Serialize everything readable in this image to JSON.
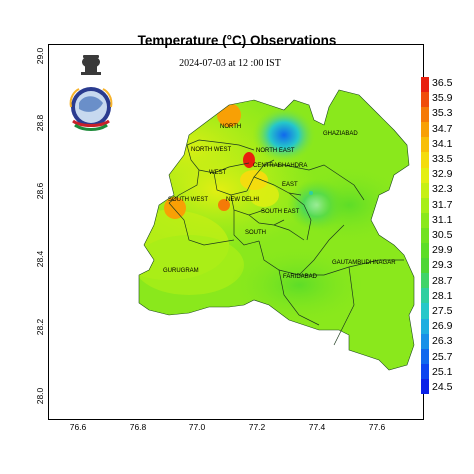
{
  "title": "Temperature (°C) Observations",
  "subtitle": "2024-07-03 at 12 :00 IST",
  "chart_data": {
    "type": "heatmap",
    "x_ticks": [
      "76.6",
      "76.8",
      "77.0",
      "77.2",
      "77.4",
      "77.6"
    ],
    "y_ticks": [
      "28.0",
      "28.2",
      "28.4",
      "28.6",
      "28.8",
      "29.0"
    ],
    "colorbar": {
      "labels": [
        "36.5",
        "35.9",
        "35.3",
        "34.7",
        "34.1",
        "33.5",
        "32.9",
        "32.3",
        "31.7",
        "31.1",
        "30.5",
        "29.9",
        "29.3",
        "28.7",
        "28.1",
        "27.5",
        "26.9",
        "26.3",
        "25.7",
        "25.1",
        "24.5"
      ],
      "colors": [
        "#e8200f",
        "#f04d0a",
        "#f57a07",
        "#f8a005",
        "#f8bf08",
        "#f4dc0e",
        "#e4ef12",
        "#c6f014",
        "#a8ee18",
        "#8ae81c",
        "#72e221",
        "#5ddd28",
        "#4fd636",
        "#3fd46a",
        "#2fcfa0",
        "#26c8c9",
        "#1eaee0",
        "#1890e8",
        "#1068ee",
        "#0c44f0",
        "#0a22e8"
      ]
    },
    "districts": [
      "NORTH",
      "NORTH WEST",
      "NORTH EAST",
      "CENTRAL",
      "SHAHDRA",
      "WEST",
      "EAST",
      "SOUTH WEST",
      "NEW DELHI",
      "SOUTH EAST",
      "SOUTH",
      "GHAZIABAD",
      "GURUGRAM",
      "FARIDABAD",
      "GAUTAMBUDHNAGAR"
    ]
  },
  "emblem": {
    "icon": "government-emblem-icon",
    "colors": [
      "#2a3b8f",
      "#c7d9ef",
      "#c8202a",
      "#1e8a3a",
      "#f7b32b"
    ]
  }
}
